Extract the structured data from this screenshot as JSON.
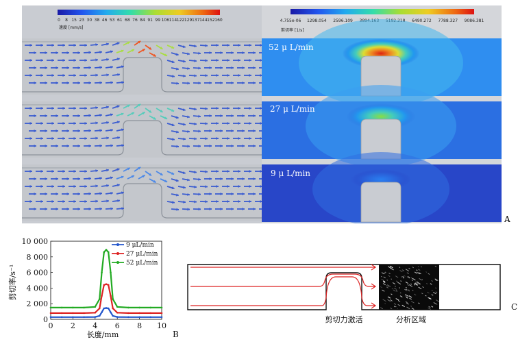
{
  "panel_a": {
    "velocity_colorbar": {
      "ticks": [
        "0",
        "8",
        "15",
        "23",
        "30",
        "38",
        "46",
        "53",
        "61",
        "68",
        "76",
        "84",
        "91",
        "99",
        "106",
        "114",
        "122",
        "129",
        "137",
        "144",
        "152",
        "160"
      ],
      "label": "速度 [mm/s]"
    },
    "shear_colorbar": {
      "ticks": [
        "4.755e-06",
        "1298.054",
        "2596.109",
        "3894.163",
        "5192.218",
        "6490.272",
        "7788.327",
        "9086.381"
      ],
      "label": "剪切率 [1/s]"
    },
    "flow_labels": [
      "52 μ L/min",
      "27 μ L/min",
      "9 μ L/min"
    ],
    "letter": "A"
  },
  "panel_b": {
    "letter": "B",
    "xlabel": "长度/mm",
    "ylabel": "剪切率/s⁻¹",
    "yticks": [
      "0",
      "2 000",
      "4 000",
      "6 000",
      "8 000",
      "10 000"
    ],
    "xticks": [
      "0",
      "2",
      "4",
      "6",
      "8",
      "10"
    ]
  },
  "panel_c": {
    "letter": "C",
    "label_shear": "剪切力激活",
    "label_analysis": "分析区域"
  },
  "chart_data": {
    "type": "line",
    "xlabel": "长度/mm",
    "ylabel": "剪切率/s⁻¹",
    "xlim": [
      0,
      10
    ],
    "ylim": [
      0,
      10000
    ],
    "series": [
      {
        "name": "9 μL/min",
        "color": "#2255cc",
        "x": [
          0,
          1,
          2,
          3,
          4,
          4.4,
          4.6,
          4.8,
          5.0,
          5.2,
          5.4,
          5.6,
          6,
          7,
          8,
          9,
          10
        ],
        "y": [
          280,
          280,
          280,
          280,
          300,
          450,
          900,
          1400,
          1450,
          1400,
          900,
          450,
          300,
          280,
          280,
          280,
          280
        ]
      },
      {
        "name": "27 μL/min",
        "color": "#dd2222",
        "x": [
          0,
          1,
          2,
          3,
          4,
          4.4,
          4.6,
          4.8,
          5.0,
          5.2,
          5.4,
          5.6,
          6,
          7,
          8,
          9,
          10
        ],
        "y": [
          800,
          800,
          800,
          800,
          850,
          1400,
          3000,
          4400,
          4500,
          4400,
          3000,
          1400,
          850,
          800,
          800,
          800,
          800
        ]
      },
      {
        "name": "52 μL/min",
        "color": "#22aa22",
        "x": [
          0,
          1,
          2,
          3,
          4,
          4.4,
          4.6,
          4.8,
          5.0,
          5.2,
          5.4,
          5.6,
          6,
          7,
          8,
          9,
          10
        ],
        "y": [
          1500,
          1500,
          1500,
          1500,
          1600,
          2600,
          6000,
          8600,
          8900,
          8600,
          6000,
          2600,
          1600,
          1500,
          1500,
          1500,
          1500
        ]
      }
    ]
  }
}
